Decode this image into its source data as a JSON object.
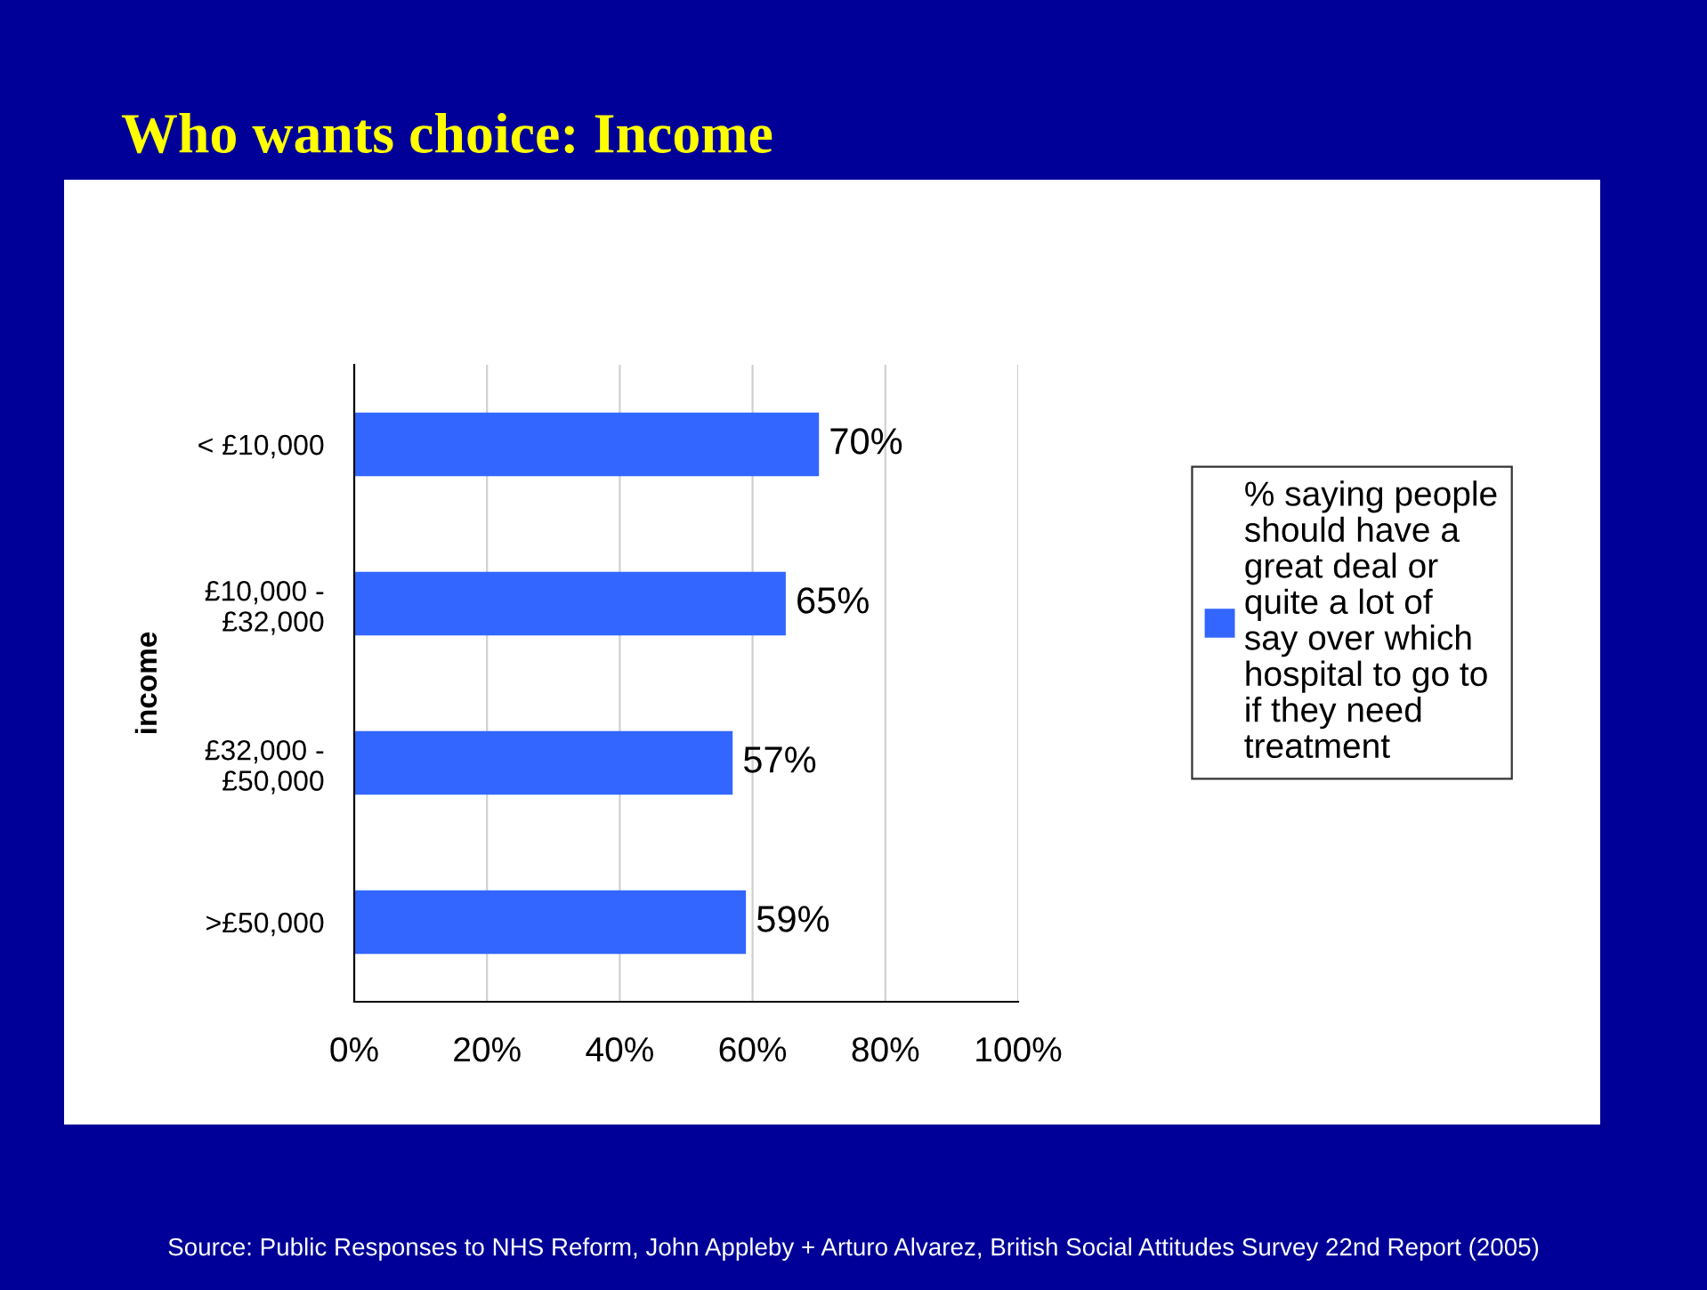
{
  "chart_data": {
    "type": "bar",
    "orientation": "horizontal",
    "title": "Who wants choice: Income",
    "ylabel": "income",
    "categories": [
      "< £10,000",
      "£10,000 -\n£32,000",
      "£32,000 -\n£50,000",
      ">£50,000"
    ],
    "series": [
      {
        "name": "% saying people should have a great deal or quite a lot of say over which hospital to go to if they need treatment",
        "color": "#3366ff",
        "values": [
          70,
          65,
          57,
          59
        ],
        "value_labels": [
          "70%",
          "65%",
          "57%",
          "59%"
        ]
      }
    ],
    "xlim": [
      0,
      100
    ],
    "xticks": [
      {
        "value": 0,
        "label": "0%"
      },
      {
        "value": 20,
        "label": "20%"
      },
      {
        "value": 40,
        "label": "40%"
      },
      {
        "value": 60,
        "label": "60%"
      },
      {
        "value": 80,
        "label": "80%"
      },
      {
        "value": 100,
        "label": "100%"
      }
    ],
    "grid": "x",
    "legend": "right",
    "annotations": [
      "Source: Public Responses to NHS Reform, John Appleby + Arturo Alvarez, British Social Attitudes Survey 22nd Report (2005)"
    ]
  }
}
